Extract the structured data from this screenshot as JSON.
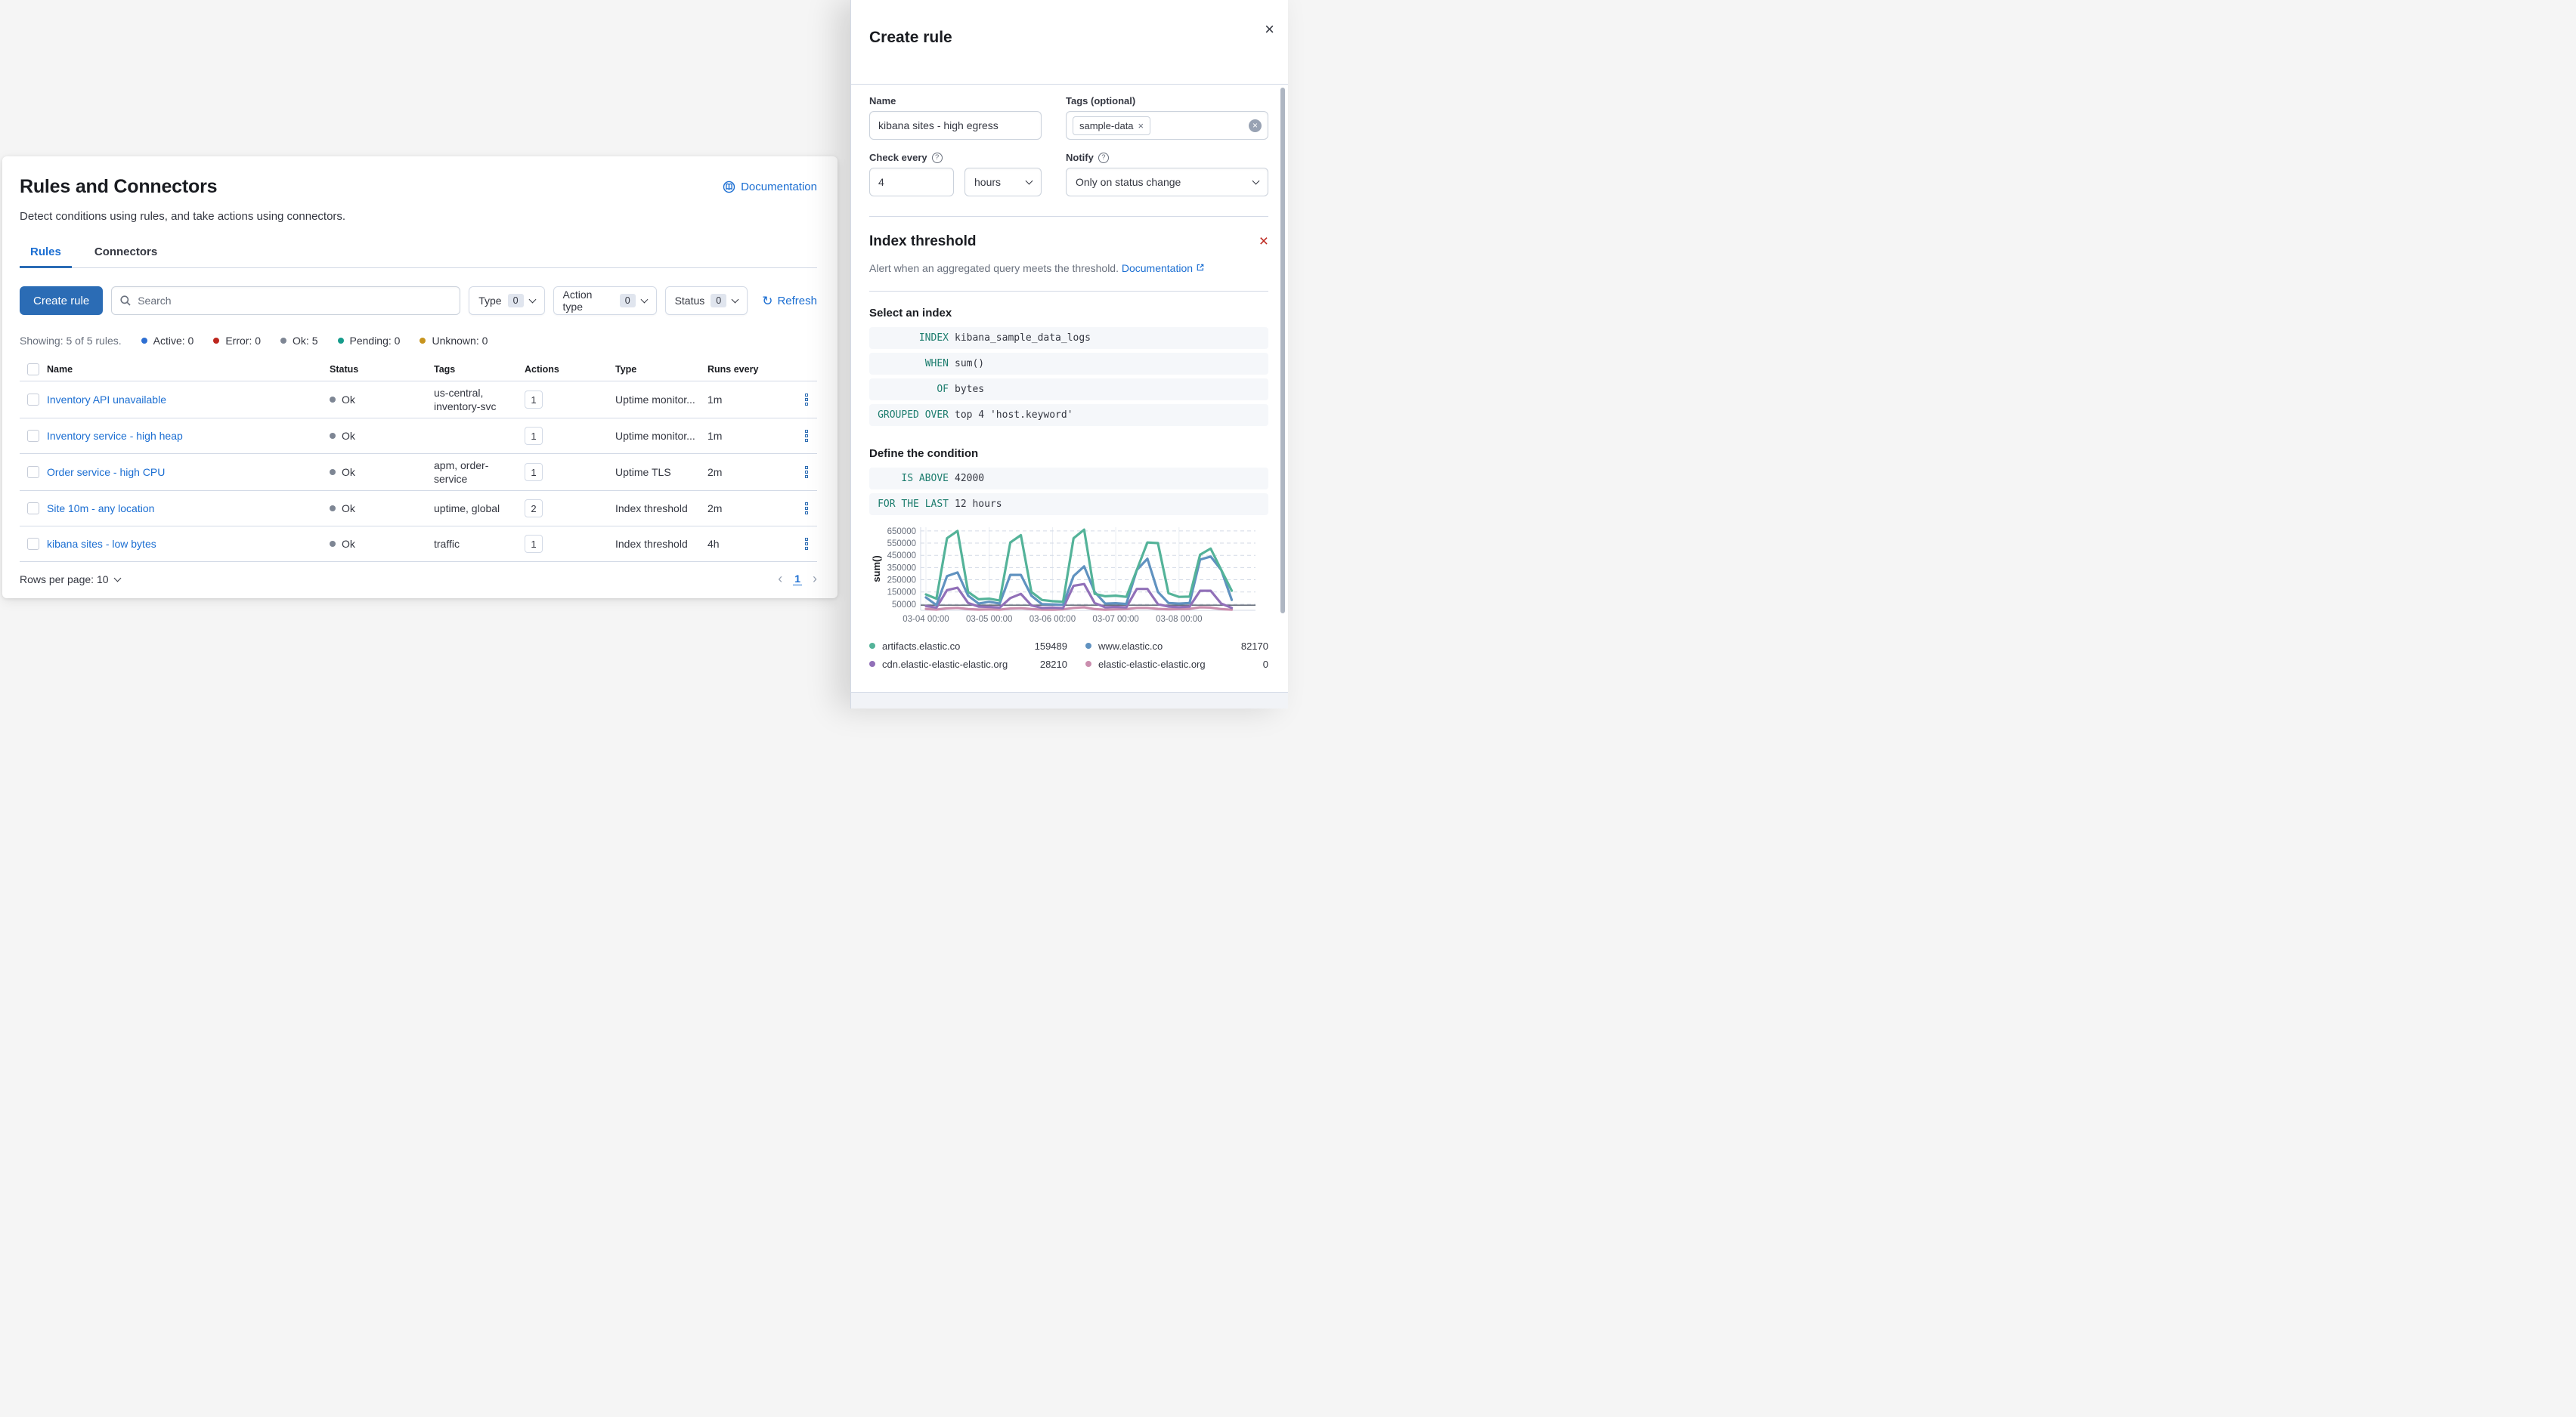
{
  "main_panel": {
    "title": "Rules and Connectors",
    "documentation_link": "Documentation",
    "subtitle": "Detect conditions using rules, and take actions using connectors.",
    "tabs": [
      {
        "label": "Rules",
        "active": true
      },
      {
        "label": "Connectors",
        "active": false
      }
    ],
    "create_rule_button": "Create rule",
    "search_placeholder": "Search",
    "filters": [
      {
        "label": "Type",
        "count": "0"
      },
      {
        "label": "Action type",
        "count": "0"
      },
      {
        "label": "Status",
        "count": "0"
      }
    ],
    "refresh_label": "Refresh",
    "summary": {
      "showing": "Showing: 5 of 5 rules.",
      "statuses": [
        {
          "label": "Active: 0",
          "color": "#2E6FD2"
        },
        {
          "label": "Error: 0",
          "color": "#BD271E"
        },
        {
          "label": "Ok: 5",
          "color": "#7E8694"
        },
        {
          "label": "Pending: 0",
          "color": "#169C8C"
        },
        {
          "label": "Unknown: 0",
          "color": "#C7941E"
        }
      ]
    },
    "table": {
      "columns": [
        "Name",
        "Status",
        "Tags",
        "Actions",
        "Type",
        "Runs every"
      ],
      "status_dot_color": "#7E8694",
      "rows": [
        {
          "name": "Inventory API unavailable",
          "status": "Ok",
          "tags": "us-central, inventory-svc",
          "actions": "1",
          "type": "Uptime monitor...",
          "runs_every": "1m"
        },
        {
          "name": "Inventory service - high heap",
          "status": "Ok",
          "tags": "",
          "actions": "1",
          "type": "Uptime monitor...",
          "runs_every": "1m"
        },
        {
          "name": "Order service - high CPU",
          "status": "Ok",
          "tags": "apm, order-service",
          "actions": "1",
          "type": "Uptime TLS",
          "runs_every": "2m"
        },
        {
          "name": "Site 10m - any location",
          "status": "Ok",
          "tags": "uptime, global",
          "actions": "2",
          "type": "Index threshold",
          "runs_every": "2m"
        },
        {
          "name": "kibana sites - low bytes",
          "status": "Ok",
          "tags": "traffic",
          "actions": "1",
          "type": "Index threshold",
          "runs_every": "4h"
        }
      ],
      "rows_per_page": "Rows per page: 10",
      "page_number": "1"
    }
  },
  "flyout": {
    "title": "Create rule",
    "name_label": "Name",
    "name_value": "kibana sites - high egress",
    "tags_label": "Tags (optional)",
    "tag_chip": "sample-data",
    "check_every_label": "Check every",
    "check_every_value": "4",
    "check_every_unit": "hours",
    "notify_label": "Notify",
    "notify_value": "Only on status change",
    "rule_type": {
      "title": "Index threshold",
      "description": "Alert when an aggregated query meets the threshold.",
      "documentation_link": "Documentation"
    },
    "select_index_heading": "Select an index",
    "index_expression": [
      {
        "keyword": "INDEX",
        "value": "kibana_sample_data_logs"
      },
      {
        "keyword": "WHEN",
        "value": "sum()"
      },
      {
        "keyword": "OF",
        "value": "bytes"
      },
      {
        "keyword": "GROUPED OVER",
        "value": "top 4 'host.keyword'"
      }
    ],
    "condition_heading": "Define the condition",
    "condition_expression": [
      {
        "keyword": "IS ABOVE",
        "value": "42000"
      },
      {
        "keyword": "FOR THE LAST",
        "value": "12 hours"
      }
    ]
  },
  "chart_data": {
    "type": "line",
    "title": "",
    "xlabel": "",
    "ylabel": "sum()",
    "ylim": [
      0,
      680000
    ],
    "yticks": [
      50000,
      150000,
      250000,
      350000,
      450000,
      550000,
      650000
    ],
    "xtick_labels": [
      "03-04 00:00",
      "03-05 00:00",
      "03-06 00:00",
      "03-07 00:00",
      "03-08 00:00"
    ],
    "xtick_hours": [
      0,
      24,
      48,
      72,
      96
    ],
    "x_hours": [
      0,
      4,
      8,
      12,
      16,
      20,
      24,
      28,
      32,
      36,
      40,
      44,
      48,
      52,
      56,
      60,
      64,
      68,
      72,
      76,
      80,
      84,
      88,
      92,
      96,
      100,
      104,
      108,
      112,
      116
    ],
    "grid": true,
    "legend_position": "bottom",
    "threshold": 42000,
    "threshold_color": "#69707D",
    "series": [
      {
        "name": "artifacts.elastic.co",
        "color": "#54B399",
        "legend_value": "159489",
        "values": [
          130000,
          95000,
          590000,
          650000,
          150000,
          90000,
          95000,
          80000,
          555000,
          615000,
          150000,
          85000,
          75000,
          70000,
          590000,
          660000,
          135000,
          115000,
          120000,
          110000,
          330000,
          555000,
          550000,
          140000,
          110000,
          112000,
          455000,
          505000,
          330000,
          160000
        ]
      },
      {
        "name": "www.elastic.co",
        "color": "#6092C0",
        "legend_value": "82170",
        "values": [
          105000,
          42000,
          280000,
          310000,
          120000,
          55000,
          70000,
          55000,
          290000,
          290000,
          120000,
          50000,
          48000,
          45000,
          280000,
          360000,
          150000,
          55000,
          58000,
          52000,
          330000,
          422000,
          150000,
          60000,
          55000,
          60000,
          415000,
          440000,
          330000,
          85000
        ]
      },
      {
        "name": "cdn.elastic-elastic-elastic.org",
        "color": "#9170B8",
        "legend_value": "28210",
        "values": [
          35000,
          22000,
          165000,
          185000,
          60000,
          30000,
          28000,
          22000,
          100000,
          135000,
          40000,
          20000,
          22000,
          18000,
          200000,
          215000,
          60000,
          25000,
          28000,
          24000,
          175000,
          175000,
          50000,
          30000,
          26000,
          30000,
          160000,
          160000,
          55000,
          20000
        ]
      },
      {
        "name": "elastic-elastic-elastic.org",
        "color": "#CA8EAE",
        "legend_value": "0",
        "values": [
          12000,
          6000,
          16000,
          20000,
          10000,
          6000,
          8000,
          6000,
          15000,
          18000,
          10000,
          6000,
          5000,
          8000,
          20000,
          25000,
          10000,
          5000,
          8000,
          10000,
          20000,
          20000,
          12000,
          8000,
          10000,
          12000,
          25000,
          22000,
          10000,
          5000
        ]
      }
    ]
  }
}
